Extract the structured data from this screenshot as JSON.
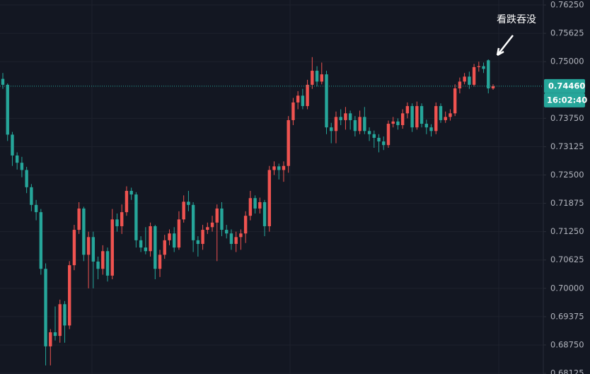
{
  "chart_data": {
    "type": "candlestick",
    "annotation": "看跌吞没",
    "last_price": {
      "value": 0.7446,
      "label": "0.74460"
    },
    "countdown": "16:02:40",
    "up_color": "#ef5350",
    "down_color": "#26a69a",
    "ylim": [
      0.6811,
      0.7636
    ],
    "yticks": [
      {
        "value": 0.68125,
        "label": "0.68125"
      },
      {
        "value": 0.6875,
        "label": "0.68750"
      },
      {
        "value": 0.69375,
        "label": "0.69375"
      },
      {
        "value": 0.7,
        "label": "0.70000"
      },
      {
        "value": 0.70625,
        "label": "0.70625"
      },
      {
        "value": 0.7125,
        "label": "0.71250"
      },
      {
        "value": 0.71875,
        "label": "0.71875"
      },
      {
        "value": 0.725,
        "label": "0.72500"
      },
      {
        "value": 0.73125,
        "label": "0.73125"
      },
      {
        "value": 0.7375,
        "label": "0.73750"
      },
      {
        "value": 0.75,
        "label": "0.75000"
      },
      {
        "value": 0.75625,
        "label": "0.75625"
      },
      {
        "value": 0.7625,
        "label": "0.76250"
      }
    ],
    "open": [
      0.7462,
      0.7449,
      0.7339,
      0.7293,
      0.7277,
      0.7261,
      0.7223,
      0.7184,
      0.7168,
      0.7043,
      0.6872,
      0.6903,
      0.6895,
      0.6965,
      0.6918,
      0.7051,
      0.7129,
      0.7176,
      0.7074,
      0.7113,
      0.7059,
      0.7043,
      0.7082,
      0.7028,
      0.7152,
      0.7137,
      0.7168,
      0.7215,
      0.7207,
      0.7106,
      0.709,
      0.7082,
      0.7137,
      0.7043,
      0.7074,
      0.7106,
      0.7121,
      0.709,
      0.7152,
      0.7191,
      0.7184,
      0.7106,
      0.7098,
      0.7129,
      0.7135,
      0.7145,
      0.7176,
      0.7129,
      0.7121,
      0.7098,
      0.7113,
      0.7121,
      0.716,
      0.7199,
      0.7176,
      0.719,
      0.7137,
      0.7261,
      0.7269,
      0.7261,
      0.727,
      0.7371,
      0.741,
      0.7425,
      0.7402,
      0.7449,
      0.748,
      0.7456,
      0.7472,
      0.7355,
      0.7347,
      0.7378,
      0.7371,
      0.7386,
      0.7371,
      0.7347,
      0.7378,
      0.7347,
      0.734,
      0.7332,
      0.7324,
      0.7316,
      0.7363,
      0.7368,
      0.736,
      0.7386,
      0.7402,
      0.7355,
      0.7402,
      0.7363,
      0.7355,
      0.7347,
      0.7402,
      0.7371,
      0.7378,
      0.7386,
      0.7441,
      0.7456,
      0.7467,
      0.7449,
      0.7488,
      0.749,
      0.7503,
      0.7441
    ],
    "high": [
      0.7475,
      0.7452,
      0.7345,
      0.73,
      0.729,
      0.7268,
      0.723,
      0.7195,
      0.7175,
      0.7055,
      0.691,
      0.696,
      0.6975,
      0.6972,
      0.706,
      0.714,
      0.719,
      0.718,
      0.7125,
      0.7125,
      0.707,
      0.7095,
      0.709,
      0.7175,
      0.7165,
      0.7185,
      0.7225,
      0.7222,
      0.7212,
      0.7115,
      0.7135,
      0.7145,
      0.714,
      0.7085,
      0.7118,
      0.713,
      0.7135,
      0.717,
      0.7205,
      0.7215,
      0.719,
      0.7115,
      0.714,
      0.7145,
      0.716,
      0.7185,
      0.719,
      0.714,
      0.713,
      0.7125,
      0.713,
      0.717,
      0.7215,
      0.7205,
      0.72,
      0.7195,
      0.727,
      0.728,
      0.7275,
      0.728,
      0.738,
      0.742,
      0.7435,
      0.744,
      0.746,
      0.751,
      0.749,
      0.7498,
      0.748,
      0.7365,
      0.739,
      0.7395,
      0.74,
      0.7392,
      0.738,
      0.7392,
      0.74,
      0.7355,
      0.7348,
      0.734,
      0.7335,
      0.737,
      0.7378,
      0.7375,
      0.7395,
      0.741,
      0.7408,
      0.7412,
      0.7408,
      0.7372,
      0.7362,
      0.741,
      0.7408,
      0.739,
      0.7395,
      0.745,
      0.7465,
      0.7475,
      0.7478,
      0.7495,
      0.75,
      0.7498,
      0.7505,
      0.745
    ],
    "low": [
      0.744,
      0.7325,
      0.727,
      0.7262,
      0.7245,
      0.721,
      0.717,
      0.715,
      0.703,
      0.683,
      0.683,
      0.6885,
      0.688,
      0.688,
      0.691,
      0.704,
      0.712,
      0.706,
      0.7,
      0.7,
      0.702,
      0.703,
      0.7015,
      0.702,
      0.7125,
      0.712,
      0.716,
      0.7195,
      0.709,
      0.708,
      0.7075,
      0.707,
      0.702,
      0.7025,
      0.7065,
      0.7095,
      0.708,
      0.7085,
      0.7145,
      0.717,
      0.708,
      0.707,
      0.7085,
      0.712,
      0.7125,
      0.706,
      0.7115,
      0.711,
      0.7085,
      0.708,
      0.7085,
      0.71,
      0.715,
      0.7165,
      0.7165,
      0.7115,
      0.7125,
      0.725,
      0.724,
      0.7235,
      0.7255,
      0.736,
      0.7395,
      0.7395,
      0.7395,
      0.744,
      0.7445,
      0.745,
      0.734,
      0.732,
      0.732,
      0.736,
      0.735,
      0.735,
      0.7335,
      0.734,
      0.734,
      0.7325,
      0.731,
      0.73,
      0.7305,
      0.731,
      0.7355,
      0.735,
      0.7352,
      0.7375,
      0.7345,
      0.735,
      0.7355,
      0.734,
      0.7335,
      0.734,
      0.7365,
      0.7365,
      0.737,
      0.738,
      0.743,
      0.745,
      0.744,
      0.7445,
      0.7478,
      0.7475,
      0.743,
      0.7438
    ],
    "close": [
      0.7449,
      0.7339,
      0.7293,
      0.7277,
      0.7261,
      0.7223,
      0.7184,
      0.7168,
      0.7043,
      0.6872,
      0.6903,
      0.6895,
      0.6965,
      0.6918,
      0.7051,
      0.7129,
      0.7176,
      0.7074,
      0.7113,
      0.7059,
      0.7043,
      0.7082,
      0.7028,
      0.7152,
      0.7137,
      0.7168,
      0.7215,
      0.7207,
      0.7106,
      0.709,
      0.7082,
      0.7137,
      0.7043,
      0.7074,
      0.7106,
      0.7121,
      0.709,
      0.7152,
      0.7191,
      0.7184,
      0.7106,
      0.7098,
      0.7129,
      0.7135,
      0.7145,
      0.7176,
      0.7129,
      0.7121,
      0.7098,
      0.7113,
      0.7121,
      0.716,
      0.7199,
      0.7176,
      0.719,
      0.7137,
      0.7261,
      0.7269,
      0.7261,
      0.727,
      0.7371,
      0.741,
      0.7425,
      0.7402,
      0.7449,
      0.748,
      0.7456,
      0.7472,
      0.7355,
      0.7347,
      0.7378,
      0.7371,
      0.7386,
      0.7371,
      0.7347,
      0.7378,
      0.7347,
      0.734,
      0.7332,
      0.7324,
      0.7316,
      0.7363,
      0.7368,
      0.736,
      0.7386,
      0.7402,
      0.7355,
      0.7402,
      0.7363,
      0.7355,
      0.7347,
      0.7402,
      0.7371,
      0.7378,
      0.7386,
      0.7441,
      0.7456,
      0.7467,
      0.7449,
      0.7488,
      0.749,
      0.7484,
      0.7441,
      0.7446
    ]
  }
}
